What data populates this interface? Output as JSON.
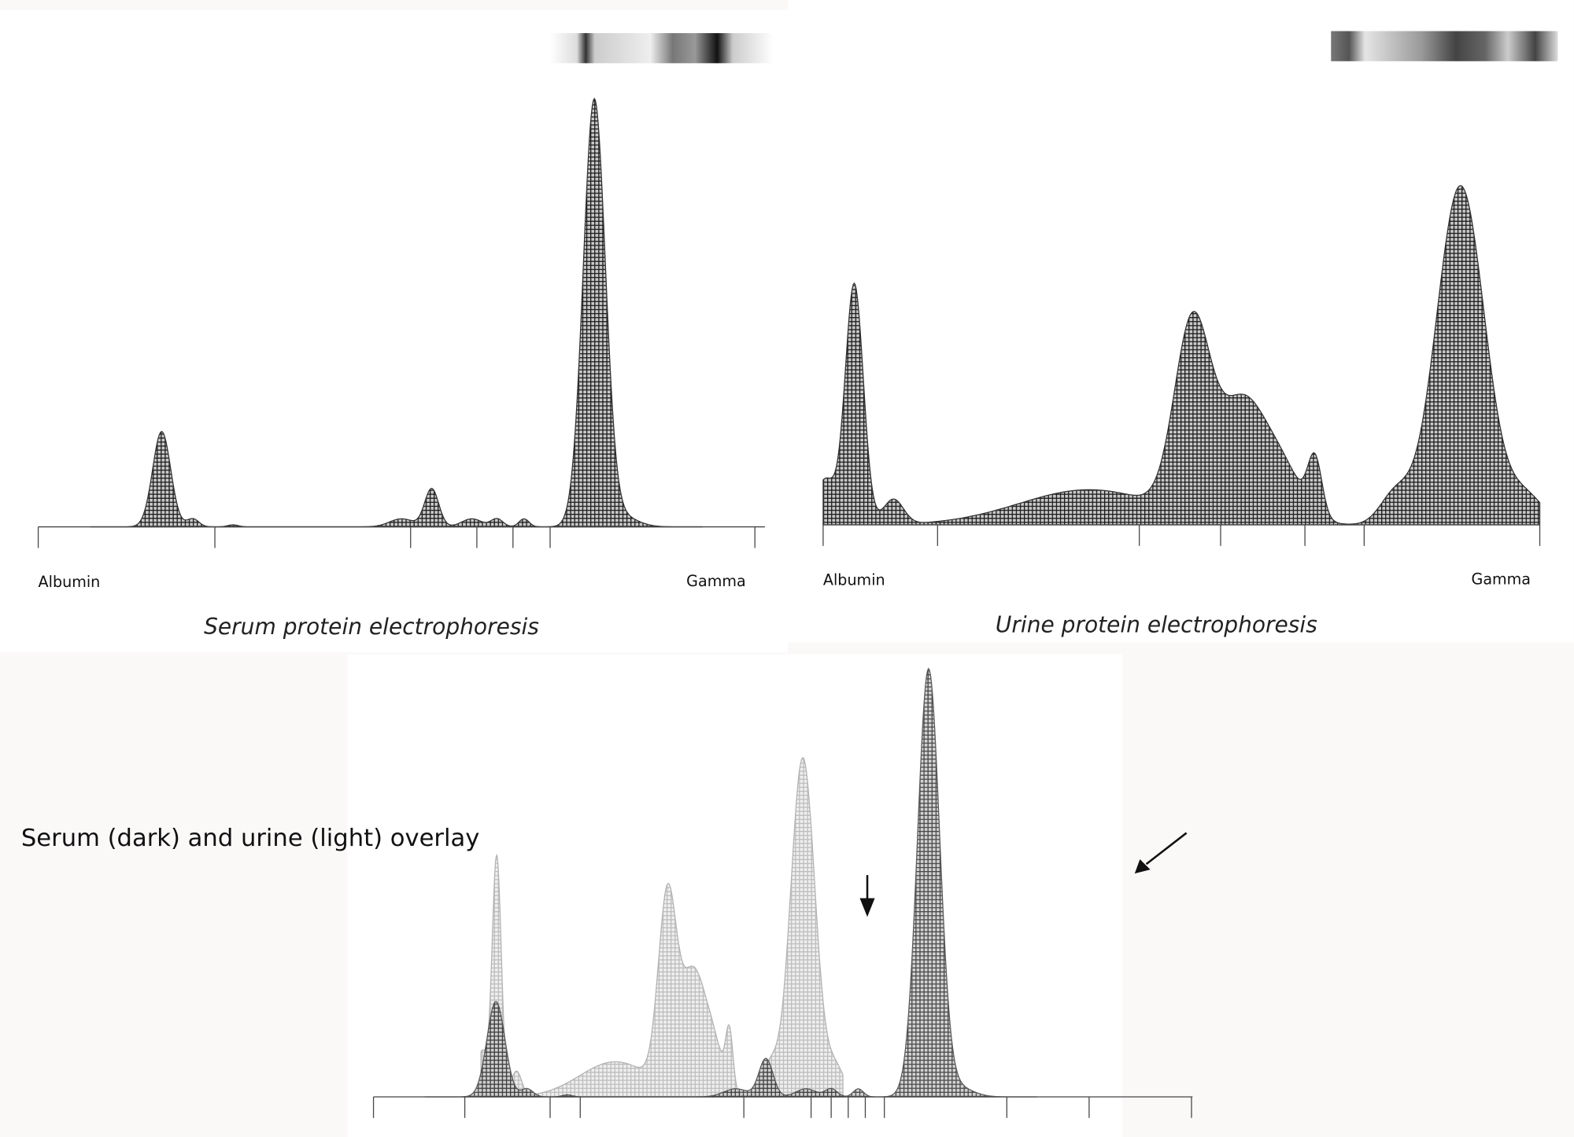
{
  "serum": {
    "left_label": "Albumin",
    "right_label": "Gamma",
    "caption": "Serum protein electrophoresis"
  },
  "urine": {
    "left_label": "Albumin",
    "right_label": "Gamma",
    "caption": "Urine protein electrophoresis"
  },
  "overlay": {
    "caption": "Serum (dark) and urine (light) overlay"
  }
}
